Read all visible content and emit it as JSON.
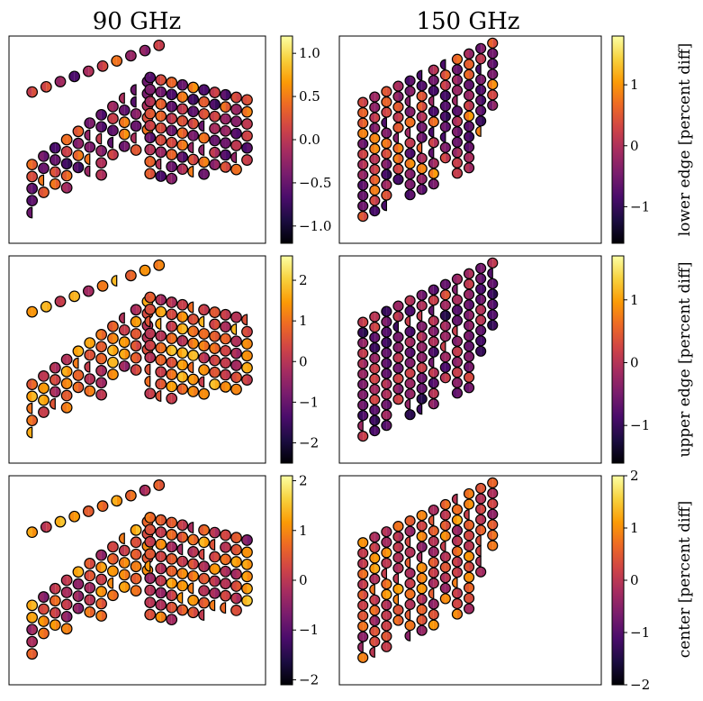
{
  "figure": {
    "column_titles": [
      "90 GHz",
      "150 GHz"
    ],
    "row_labels": [
      "lower edge [percent diff]",
      "upper edge [percent diff]",
      "center [percent diff]"
    ]
  },
  "colormap": {
    "name": "inferno",
    "stops": [
      "#000004",
      "#1b0c41",
      "#4a0c6b",
      "#781c6d",
      "#a52c60",
      "#cf4446",
      "#ed6925",
      "#fb9b06",
      "#f7d13d",
      "#fcffa4"
    ]
  },
  "chart_data": [
    {
      "type": "scatter",
      "title": "90 GHz",
      "row": "lower edge",
      "detector_array": "90 GHz",
      "colorbar": {
        "range": [
          -1.2,
          1.2
        ],
        "ticks": [
          -1.0,
          -0.5,
          0.0,
          0.5,
          1.0
        ],
        "tick_labels": [
          "−1.0",
          "−0.5",
          "0.0",
          "0.5",
          "1.0"
        ]
      },
      "value_mean": -0.1,
      "value_spread": 0.6
    },
    {
      "type": "scatter",
      "title": "150 GHz",
      "row": "lower edge",
      "detector_array": "150 GHz",
      "colorbar": {
        "range": [
          -1.6,
          1.8
        ],
        "ticks": [
          -1,
          0,
          1
        ],
        "tick_labels": [
          "−1",
          "0",
          "1"
        ]
      },
      "value_mean": 0.0,
      "value_spread": 0.9
    },
    {
      "type": "scatter",
      "title": "90 GHz",
      "row": "upper edge",
      "detector_array": "90 GHz",
      "colorbar": {
        "range": [
          -2.5,
          2.6
        ],
        "ticks": [
          -2,
          -1,
          0,
          1,
          2
        ],
        "tick_labels": [
          "−2",
          "−1",
          "0",
          "1",
          "2"
        ]
      },
      "value_mean": 0.8,
      "value_spread": 1.1
    },
    {
      "type": "scatter",
      "title": "150 GHz",
      "row": "upper edge",
      "detector_array": "150 GHz",
      "colorbar": {
        "range": [
          -1.6,
          1.7
        ],
        "ticks": [
          -1,
          0,
          1
        ],
        "tick_labels": [
          "−1",
          "0",
          "1"
        ]
      },
      "value_mean": -0.4,
      "value_spread": 0.7
    },
    {
      "type": "scatter",
      "title": "90 GHz",
      "row": "center",
      "detector_array": "90 GHz",
      "colorbar": {
        "range": [
          -2.1,
          2.1
        ],
        "ticks": [
          -2,
          -1,
          0,
          1,
          2
        ],
        "tick_labels": [
          "−2",
          "−1",
          "0",
          "1",
          "2"
        ]
      },
      "value_mean": 0.5,
      "value_spread": 1.0
    },
    {
      "type": "scatter",
      "title": "150 GHz",
      "row": "center",
      "detector_array": "150 GHz",
      "colorbar": {
        "range": [
          -2.0,
          2.0
        ],
        "ticks": [
          -2,
          -1,
          0,
          1,
          2
        ],
        "tick_labels": [
          "−2",
          "−1",
          "0",
          "1",
          "2"
        ]
      },
      "value_mean": 0.3,
      "value_spread": 0.8
    }
  ]
}
